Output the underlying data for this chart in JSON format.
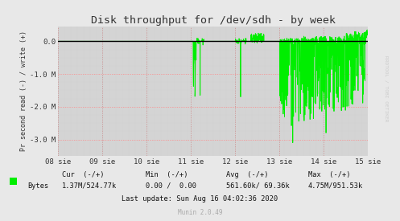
{
  "title": "Disk throughput for /dev/sdh - by week",
  "ylabel": "Pr second read (-) / write (+)",
  "background_color": "#e8e8e8",
  "plot_bg_color": "#d4d4d4",
  "line_color": "#00ee00",
  "grid_color_h": "#ff8888",
  "grid_color_v": "#cc8888",
  "zero_line_color": "#000000",
  "ylim": [
    -3500000,
    450000
  ],
  "yticks": [
    0,
    -1000000,
    -2000000,
    -3000000
  ],
  "ytick_labels": [
    "0.0",
    "-1.0 M",
    "-2.0 M",
    "-3.0 M"
  ],
  "xtick_labels": [
    "08 sie",
    "09 sie",
    "10 sie",
    "11 sie",
    "12 sie",
    "13 sie",
    "14 sie",
    "15 sie"
  ],
  "rrdtool_text": "RRDTOOL / TOBI OETIKER",
  "footer_munin": "Munin 2.0.49"
}
